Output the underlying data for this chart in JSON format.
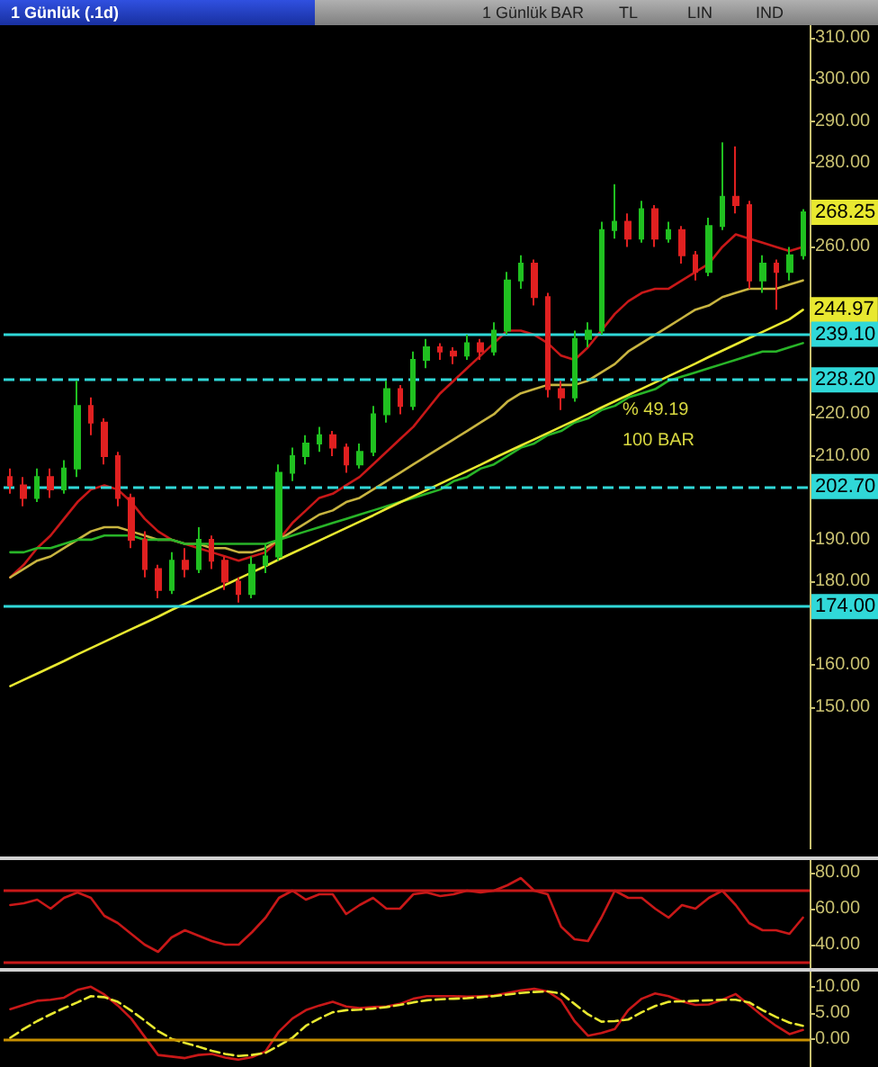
{
  "chart_data": [
    {
      "type": "candlestick",
      "title": "1 Günlük (.1d)",
      "annotations": [
        "1 Günlük",
        "BAR",
        "TL",
        "LIN",
        "IND",
        "% 49.19",
        "100 BAR"
      ],
      "categories": [
        null,
        null,
        null,
        null,
        null,
        null,
        null,
        null,
        null,
        null,
        null,
        null,
        null,
        null,
        null,
        null,
        null,
        null,
        null,
        null,
        null,
        null,
        null,
        null,
        null,
        null,
        null,
        null,
        null,
        null,
        null,
        null,
        null,
        null,
        null,
        null,
        null,
        null,
        null,
        null,
        null,
        null,
        null,
        null,
        null,
        null,
        null,
        null,
        null,
        null,
        null,
        null,
        null,
        null,
        null,
        null,
        null,
        null,
        null,
        null
      ],
      "ohlc": [
        [
          205,
          207,
          201,
          203
        ],
        [
          203,
          205,
          198,
          200
        ],
        [
          200,
          207,
          199,
          205
        ],
        [
          205,
          207,
          200,
          202
        ],
        [
          202,
          209,
          201,
          207
        ],
        [
          207,
          228,
          205,
          222
        ],
        [
          222,
          224,
          215,
          218
        ],
        [
          218,
          219,
          208,
          210
        ],
        [
          210,
          211,
          198,
          200
        ],
        [
          200,
          201,
          188,
          190
        ],
        [
          190,
          192,
          181,
          183
        ],
        [
          183,
          184,
          176,
          178
        ],
        [
          178,
          187,
          177,
          185
        ],
        [
          185,
          188,
          181,
          183
        ],
        [
          183,
          193,
          182,
          190
        ],
        [
          190,
          191,
          183,
          185
        ],
        [
          185,
          186,
          178,
          180
        ],
        [
          180,
          181,
          175,
          177
        ],
        [
          177,
          186,
          176,
          184
        ],
        [
          184,
          189,
          182,
          186
        ],
        [
          186,
          208,
          185,
          206
        ],
        [
          206,
          212,
          204,
          210
        ],
        [
          210,
          215,
          208,
          213
        ],
        [
          213,
          217,
          211,
          215
        ],
        [
          215,
          216,
          210,
          212
        ],
        [
          212,
          213,
          206,
          208
        ],
        [
          208,
          213,
          207,
          211
        ],
        [
          211,
          222,
          210,
          220
        ],
        [
          220,
          228,
          218,
          226
        ],
        [
          226,
          227,
          220,
          222
        ],
        [
          222,
          235,
          221,
          233
        ],
        [
          233,
          238,
          231,
          236
        ],
        [
          236,
          237,
          233,
          235
        ],
        [
          235,
          236,
          232,
          234
        ],
        [
          234,
          239,
          233,
          237
        ],
        [
          237,
          238,
          233,
          235
        ],
        [
          235,
          242,
          234,
          240
        ],
        [
          240,
          254,
          239,
          252
        ],
        [
          252,
          258,
          250,
          256
        ],
        [
          256,
          257,
          246,
          248
        ],
        [
          248,
          249,
          224,
          226
        ],
        [
          226,
          228,
          221,
          224
        ],
        [
          224,
          240,
          223,
          238
        ],
        [
          238,
          242,
          236,
          240
        ],
        [
          240,
          266,
          239,
          264
        ],
        [
          264,
          275,
          262,
          266
        ],
        [
          266,
          268,
          260,
          262
        ],
        [
          262,
          271,
          261,
          269
        ],
        [
          269,
          270,
          260,
          262
        ],
        [
          262,
          266,
          261,
          264
        ],
        [
          264,
          265,
          256,
          258
        ],
        [
          258,
          259,
          252,
          254
        ],
        [
          254,
          267,
          253,
          265
        ],
        [
          265,
          285,
          264,
          272
        ],
        [
          272,
          284,
          268,
          270
        ],
        [
          270,
          271,
          250,
          252
        ],
        [
          252,
          258,
          249,
          256
        ],
        [
          256,
          257,
          245,
          254
        ],
        [
          254,
          260,
          252,
          258
        ],
        [
          258,
          269,
          257,
          268.25
        ]
      ],
      "value_labels": [
        null,
        null,
        null,
        null,
        null,
        null,
        null,
        null,
        null,
        null,
        null,
        null,
        null,
        null,
        null,
        null,
        null,
        null,
        null,
        null,
        null,
        null,
        null,
        null,
        null,
        null,
        null,
        null,
        null,
        null,
        null,
        null,
        null,
        null,
        null,
        null,
        null,
        null,
        null,
        null,
        null,
        null,
        null,
        null,
        null,
        null,
        null,
        null,
        null,
        null,
        null,
        null,
        null,
        null,
        null,
        null,
        null,
        null,
        null,
        "268.25"
      ],
      "series": [
        {
          "type": "line",
          "color": "#c81818",
          "values": [
            181,
            184,
            188,
            191,
            195,
            199,
            202,
            203,
            202,
            199,
            195,
            192,
            190,
            189,
            188,
            187,
            186,
            185,
            186,
            187,
            190,
            194,
            197,
            200,
            201,
            203,
            205,
            208,
            211,
            214,
            217,
            221,
            225,
            228,
            231,
            234,
            237,
            240,
            240,
            239,
            237,
            234,
            233,
            236,
            240,
            244,
            247,
            249,
            250,
            250,
            252,
            254,
            256,
            260,
            263,
            262,
            261,
            260,
            259,
            260
          ]
        },
        {
          "type": "line",
          "color": "#c8b440",
          "values": [
            181,
            183,
            185,
            186,
            188,
            190,
            192,
            193,
            193,
            192,
            191,
            190,
            190,
            189,
            189,
            188,
            188,
            187,
            187,
            188,
            190,
            192,
            194,
            196,
            197,
            199,
            200,
            202,
            204,
            206,
            208,
            210,
            212,
            214,
            216,
            218,
            220,
            223,
            225,
            226,
            227,
            227,
            227,
            228,
            230,
            232,
            235,
            237,
            239,
            241,
            243,
            245,
            246,
            248,
            249,
            250,
            250,
            250,
            251,
            252
          ]
        },
        {
          "type": "line",
          "color": "#28b428",
          "values": [
            187,
            187,
            188,
            188,
            189,
            190,
            190,
            191,
            191,
            191,
            190,
            190,
            190,
            189,
            189,
            189,
            189,
            189,
            189,
            189,
            190,
            191,
            192,
            193,
            194,
            195,
            196,
            197,
            198,
            199,
            200,
            201,
            202,
            204,
            205,
            207,
            208,
            210,
            212,
            213,
            215,
            216,
            218,
            219,
            221,
            222,
            224,
            225,
            226,
            228,
            229,
            230,
            231,
            232,
            233,
            234,
            235,
            235,
            236,
            237
          ]
        },
        {
          "type": "line",
          "color": "#e8e830",
          "values": [
            155,
            156.5,
            158,
            159.5,
            161,
            162.6,
            164.1,
            165.6,
            167.1,
            168.6,
            170.1,
            171.6,
            173.2,
            174.7,
            176.2,
            177.7,
            179.2,
            180.7,
            182.2,
            183.7,
            185.3,
            186.8,
            188.3,
            189.8,
            191.3,
            192.8,
            194.3,
            195.8,
            197.4,
            198.9,
            200.4,
            201.9,
            203.4,
            204.9,
            206.4,
            207.9,
            209.5,
            211,
            212.5,
            214,
            215.5,
            217,
            218.5,
            220,
            221.6,
            223.1,
            224.6,
            226.1,
            227.6,
            229.1,
            230.6,
            232.1,
            233.7,
            235.2,
            236.7,
            238.2,
            239.7,
            241.2,
            242.7,
            244.97
          ],
          "value_labels": [
            null,
            null,
            null,
            null,
            null,
            null,
            null,
            null,
            null,
            null,
            null,
            null,
            null,
            null,
            null,
            null,
            null,
            null,
            null,
            null,
            null,
            null,
            null,
            null,
            null,
            null,
            null,
            null,
            null,
            null,
            null,
            null,
            null,
            null,
            null,
            null,
            null,
            null,
            null,
            null,
            null,
            null,
            null,
            null,
            null,
            null,
            null,
            null,
            null,
            null,
            null,
            null,
            null,
            null,
            null,
            null,
            null,
            null,
            null,
            "244.97"
          ]
        }
      ],
      "ylim": [
        116,
        313
      ],
      "yticks": [
        {
          "value": 150,
          "label": "150.00"
        },
        {
          "value": 160,
          "label": "160.00"
        },
        {
          "value": 180,
          "label": "180.00"
        },
        {
          "value": 190,
          "label": "190.00"
        },
        {
          "value": 210,
          "label": "210.00"
        },
        {
          "value": 220,
          "label": "220.00"
        },
        {
          "value": 260,
          "label": "260.00"
        },
        {
          "value": 280,
          "label": "280.00"
        },
        {
          "value": 290,
          "label": "290.00"
        },
        {
          "value": 300,
          "label": "300.00"
        },
        {
          "value": 310,
          "label": "310.00"
        }
      ],
      "ref_lines": [
        {
          "axis": "y",
          "value": 239.1,
          "label": "239.10",
          "color": "#30d8d8",
          "line_style": "solid"
        },
        {
          "axis": "y",
          "value": 228.2,
          "label": "228.20",
          "color": "#30d8d8",
          "line_style": "dashed"
        },
        {
          "axis": "y",
          "value": 202.7,
          "label": "202.70",
          "color": "#30d8d8",
          "line_style": "dashed"
        },
        {
          "axis": "y",
          "value": 174,
          "label": "174.00",
          "color": "#30d8d8",
          "line_style": "solid"
        }
      ]
    },
    {
      "type": "line",
      "categories": [
        null,
        null,
        null,
        null,
        null,
        null,
        null,
        null,
        null,
        null,
        null,
        null,
        null,
        null,
        null,
        null,
        null,
        null,
        null,
        null,
        null,
        null,
        null,
        null,
        null,
        null,
        null,
        null,
        null,
        null,
        null,
        null,
        null,
        null,
        null,
        null,
        null,
        null,
        null,
        null,
        null,
        null,
        null,
        null,
        null,
        null,
        null,
        null,
        null,
        null,
        null,
        null,
        null,
        null,
        null,
        null,
        null,
        null,
        null,
        null
      ],
      "series": [
        {
          "color": "#c81818",
          "values": [
            62,
            63,
            65,
            60,
            66,
            69,
            66,
            56,
            52,
            46,
            40,
            36,
            44,
            48,
            45,
            42,
            40,
            40,
            47,
            55,
            66,
            70,
            65,
            68,
            68,
            57,
            62,
            66,
            60,
            60,
            68,
            69,
            67,
            68,
            70,
            69,
            70,
            73,
            77,
            70,
            68,
            50,
            43,
            42,
            55,
            70,
            66,
            66,
            60,
            55,
            62,
            60,
            66,
            70,
            62,
            52,
            48,
            48,
            46,
            55
          ]
        }
      ],
      "ylim": [
        27,
        87
      ],
      "yticks": [
        {
          "value": 40,
          "label": "40.00"
        },
        {
          "value": 60,
          "label": "60.00"
        },
        {
          "value": 80,
          "label": "80.00"
        }
      ],
      "ref_lines": [
        {
          "axis": "y",
          "value": 70,
          "color": "#c81818",
          "line_style": "solid"
        },
        {
          "axis": "y",
          "value": 30,
          "color": "#c81818",
          "line_style": "solid"
        }
      ]
    },
    {
      "type": "line",
      "categories": [
        null,
        null,
        null,
        null,
        null,
        null,
        null,
        null,
        null,
        null,
        null,
        null,
        null,
        null,
        null,
        null,
        null,
        null,
        null,
        null,
        null,
        null,
        null,
        null,
        null,
        null,
        null,
        null,
        null,
        null,
        null,
        null,
        null,
        null,
        null,
        null,
        null,
        null,
        null,
        null,
        null,
        null,
        null,
        null,
        null,
        null,
        null,
        null,
        null,
        null,
        null,
        null,
        null,
        null,
        null,
        null,
        null,
        null,
        null,
        null
      ],
      "series": [
        {
          "color": "#c81818",
          "values": [
            5.8,
            6.6,
            7.4,
            7.6,
            8,
            9.5,
            10.1,
            8.6,
            6.5,
            4,
            0.5,
            -3,
            -3.3,
            -3.6,
            -3,
            -2.8,
            -3.5,
            -3.9,
            -3.4,
            -2.3,
            1.5,
            4,
            5.6,
            6.5,
            7.2,
            6.3,
            6,
            6.2,
            6.3,
            6.8,
            7.8,
            8.3,
            8.3,
            8.3,
            8.2,
            8.3,
            8.4,
            8.9,
            9.4,
            9.7,
            9.2,
            7.5,
            3.5,
            0.7,
            1.2,
            2,
            5.6,
            7.8,
            8.8,
            8.3,
            7.3,
            6.6,
            6.7,
            7.6,
            8.7,
            6.6,
            4.5,
            2.6,
            1,
            1.8
          ]
        },
        {
          "color": "#e8e830",
          "line_style": "dashed",
          "values": [
            0.3,
            2,
            3.5,
            4.8,
            6,
            7.1,
            8.3,
            8.1,
            7.2,
            5.5,
            3.6,
            1.6,
            0.1,
            -0.7,
            -1.4,
            -2.2,
            -2.8,
            -3.2,
            -3,
            -2.6,
            -1.2,
            0.3,
            2.6,
            4,
            5.2,
            5.6,
            5.7,
            5.9,
            6.2,
            6.6,
            7.1,
            7.5,
            7.7,
            7.8,
            7.9,
            8.1,
            8.3,
            8.6,
            8.9,
            9.1,
            9.2,
            8.8,
            6.8,
            4.8,
            3.4,
            3.5,
            3.8,
            5.2,
            6.4,
            7.2,
            7.3,
            7.4,
            7.5,
            7.6,
            7.6,
            7.1,
            5.6,
            4.3,
            3.2,
            2.6
          ]
        }
      ],
      "ylim": [
        -6,
        13
      ],
      "yticks": [
        {
          "value": 0,
          "label": "0.00"
        },
        {
          "value": 5,
          "label": "5.00"
        },
        {
          "value": 10,
          "label": "10.00"
        }
      ],
      "ref_lines": [
        {
          "axis": "y",
          "value": 0,
          "color": "#c89000",
          "line_style": "solid"
        }
      ]
    }
  ]
}
